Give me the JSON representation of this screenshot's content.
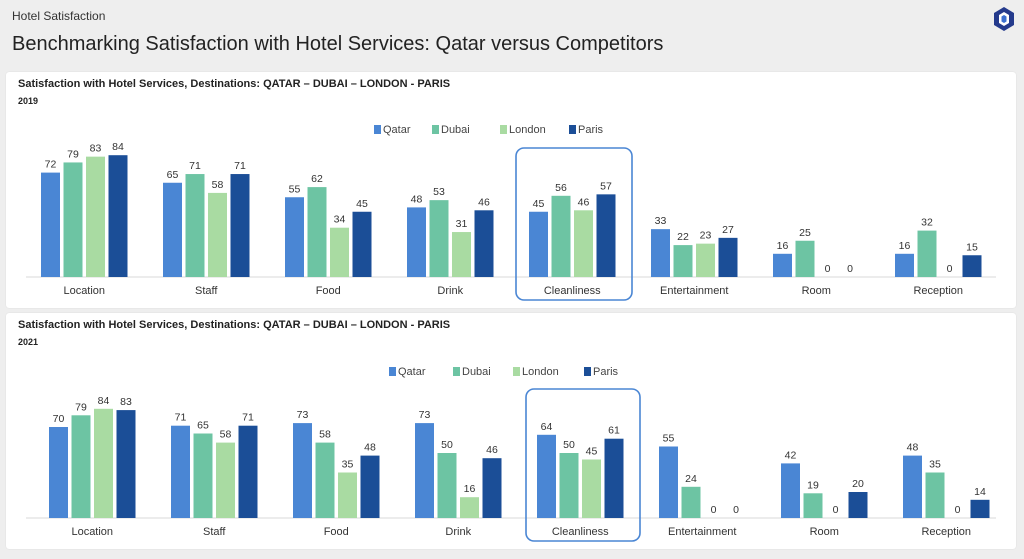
{
  "header": {
    "app_title": "Hotel Satisfaction",
    "page_title": "Benchmarking Satisfaction with Hotel Services: Qatar versus Competitors",
    "logo_icon": "hexagon-logo-icon"
  },
  "colors": {
    "qatar": "#4a86d4",
    "dubai": "#6dc4a3",
    "london": "#a9dba2",
    "paris": "#1b4e97",
    "highlight": "#4a86d4"
  },
  "chart_data": [
    {
      "type": "bar",
      "title": "Satisfaction with Hotel Services, Destinations: QATAR – DUBAI – LONDON - PARIS",
      "subtitle": "2019",
      "categories": [
        "Location",
        "Staff",
        "Food",
        "Drink",
        "Cleanliness",
        "Entertainment",
        "Room",
        "Reception"
      ],
      "series": [
        {
          "name": "Qatar",
          "values": [
            72,
            65,
            55,
            48,
            45,
            33,
            16,
            16
          ]
        },
        {
          "name": "Dubai",
          "values": [
            79,
            71,
            62,
            53,
            56,
            22,
            25,
            32
          ]
        },
        {
          "name": "London",
          "values": [
            83,
            58,
            34,
            31,
            46,
            23,
            0,
            0
          ]
        },
        {
          "name": "Paris",
          "values": [
            84,
            71,
            45,
            46,
            57,
            27,
            0,
            15
          ]
        }
      ],
      "highlighted_category": "Cleanliness",
      "legend_position": "top-center",
      "grid": false,
      "ylim": [
        0,
        84
      ]
    },
    {
      "type": "bar",
      "title": "Satisfaction with Hotel Services, Destinations: QATAR – DUBAI – LONDON - PARIS",
      "subtitle": "2021",
      "categories": [
        "Location",
        "Staff",
        "Food",
        "Drink",
        "Cleanliness",
        "Entertainment",
        "Room",
        "Reception"
      ],
      "series": [
        {
          "name": "Qatar",
          "values": [
            70,
            71,
            73,
            73,
            64,
            55,
            42,
            48
          ]
        },
        {
          "name": "Dubai",
          "values": [
            79,
            65,
            58,
            50,
            50,
            24,
            19,
            35
          ]
        },
        {
          "name": "London",
          "values": [
            84,
            58,
            35,
            16,
            45,
            0,
            0,
            0
          ]
        },
        {
          "name": "Paris",
          "values": [
            83,
            71,
            48,
            46,
            61,
            0,
            20,
            14
          ]
        }
      ],
      "highlighted_category": "Cleanliness",
      "legend_position": "top-center",
      "grid": false,
      "ylim": [
        0,
        84
      ]
    }
  ]
}
